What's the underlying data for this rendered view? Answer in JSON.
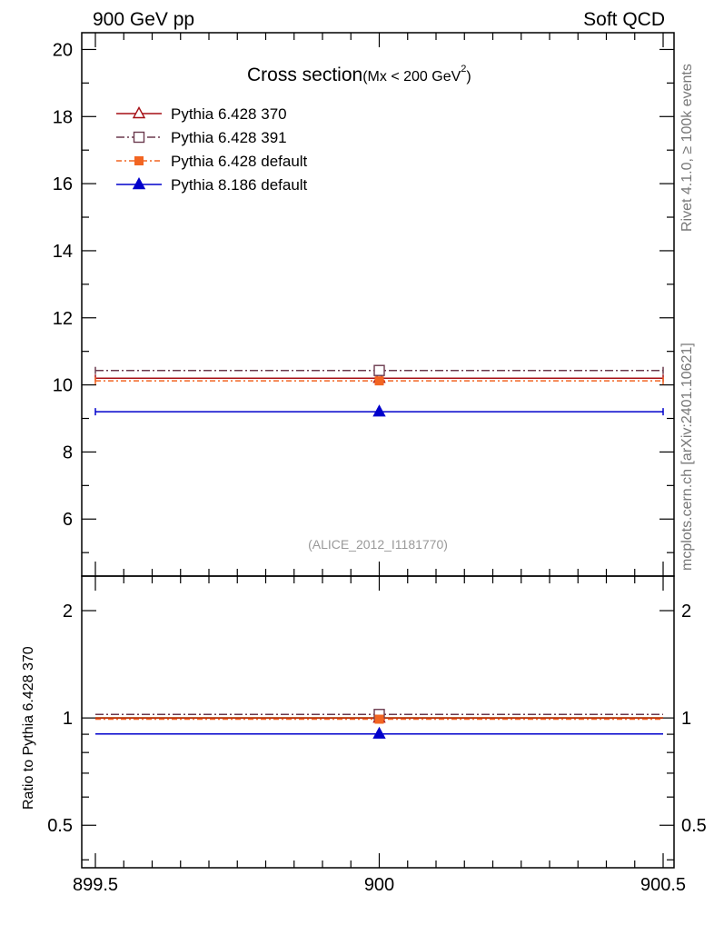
{
  "header": {
    "left": "900 GeV pp",
    "right": "Soft QCD"
  },
  "side_labels": {
    "rivet": "Rivet 4.1.0, ≥ 100k events",
    "mcplots": "mcplots.cern.ch [arXiv:2401.10621]"
  },
  "chart_data": {
    "type": "line",
    "title": "Cross section",
    "title_sub": "(Mx < 200 GeV",
    "title_sup": "2",
    "title_close": ")",
    "analysis_tag": "(ALICE_2012_I1181770)",
    "x_range": [
      899.5,
      900.5
    ],
    "x_ticks": [
      "899.5",
      "900",
      "900.5"
    ],
    "x_tick_values": [
      899.5,
      900,
      900.5
    ],
    "main_panel": {
      "ylim": [
        4.3,
        20.5
      ],
      "y_ticks": [
        "6",
        "8",
        "10",
        "12",
        "14",
        "16",
        "18",
        "20"
      ],
      "y_tick_values": [
        6,
        8,
        10,
        12,
        14,
        16,
        18,
        20
      ]
    },
    "ratio_panel": {
      "ylabel": "Ratio to Pythia 6.428 370",
      "log_scale": true,
      "ylim": [
        0.38,
        2.5
      ],
      "y_ticks": [
        "0.5",
        "1",
        "2"
      ],
      "y_tick_values": [
        0.5,
        1,
        2
      ]
    },
    "legend_position": "top-left",
    "series": [
      {
        "name": "Pythia 6.428 370",
        "x": 900,
        "value": 10.2,
        "ratio": 1.0,
        "color": "#a50f15",
        "marker": "triangle-open",
        "dash": ""
      },
      {
        "name": "Pythia 6.428 391",
        "x": 900,
        "value": 10.43,
        "ratio": 1.023,
        "color": "#6b3a4e",
        "marker": "square-open",
        "dash": "9,3,2,3"
      },
      {
        "name": "Pythia 6.428 default",
        "x": 900,
        "value": 10.12,
        "ratio": 0.992,
        "color": "#f26522",
        "marker": "square-filled",
        "dash": "6,3,2,3"
      },
      {
        "name": "Pythia 8.186 default",
        "x": 900,
        "value": 9.2,
        "ratio": 0.902,
        "color": "#0000cc",
        "marker": "triangle-filled",
        "dash": ""
      }
    ]
  }
}
